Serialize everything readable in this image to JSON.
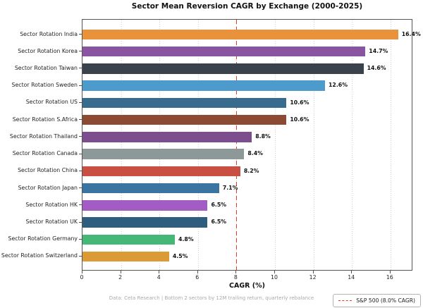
{
  "title": "Sector Mean Reversion CAGR by Exchange (2000-2025)",
  "chart_data": {
    "type": "bar",
    "orientation": "horizontal",
    "title": "Sector Mean Reversion CAGR by Exchange (2000-2025)",
    "categories": [
      "Sector Rotation India",
      "Sector Rotation Korea",
      "Sector Rotation Taiwan",
      "Sector Rotation Sweden",
      "Sector Rotation US",
      "Sector Rotation S.Africa",
      "Sector Rotation Thailand",
      "Sector Rotation Canada",
      "Sector Rotation China",
      "Sector Rotation Japan",
      "Sector Rotation HK",
      "Sector Rotation UK",
      "Sector Rotation Germany",
      "Sector Rotation Switzerland"
    ],
    "values": [
      16.4,
      14.7,
      14.6,
      12.6,
      10.6,
      10.6,
      8.8,
      8.4,
      8.2,
      7.1,
      6.5,
      6.5,
      4.8,
      4.5
    ],
    "value_labels": [
      "16.4%",
      "14.7%",
      "14.6%",
      "12.6%",
      "10.6%",
      "10.6%",
      "8.8%",
      "8.4%",
      "8.2%",
      "7.1%",
      "6.5%",
      "6.5%",
      "4.8%",
      "4.5%"
    ],
    "bar_colors": [
      "#e8923c",
      "#8a55a0",
      "#3a424b",
      "#4d9bcc",
      "#386c8e",
      "#8c4a32",
      "#7d4e8e",
      "#8d9998",
      "#c94f43",
      "#3a74a0",
      "#a35cc4",
      "#2f5d7e",
      "#45b878",
      "#db9a35"
    ],
    "xlabel": "CAGR (%)",
    "xlim": [
      0,
      17.18
    ],
    "xticks": [
      0,
      2,
      4,
      6,
      8,
      10,
      12,
      14,
      16
    ],
    "xtick_labels": [
      "0",
      "2",
      "4",
      "6",
      "8",
      "10",
      "12",
      "14",
      "16"
    ],
    "grid": "vertical-dotted",
    "grid_color": "#d2d2d2",
    "legend_position": "lower right",
    "reference_line": {
      "value": 8.0,
      "style": "dashed",
      "color": "#e23d28",
      "label": "S&P 500 (8.0% CAGR)"
    }
  },
  "footer": "Data: Ceta Research | Bottom 2 sectors by 12M trailing return, quarterly rebalance"
}
